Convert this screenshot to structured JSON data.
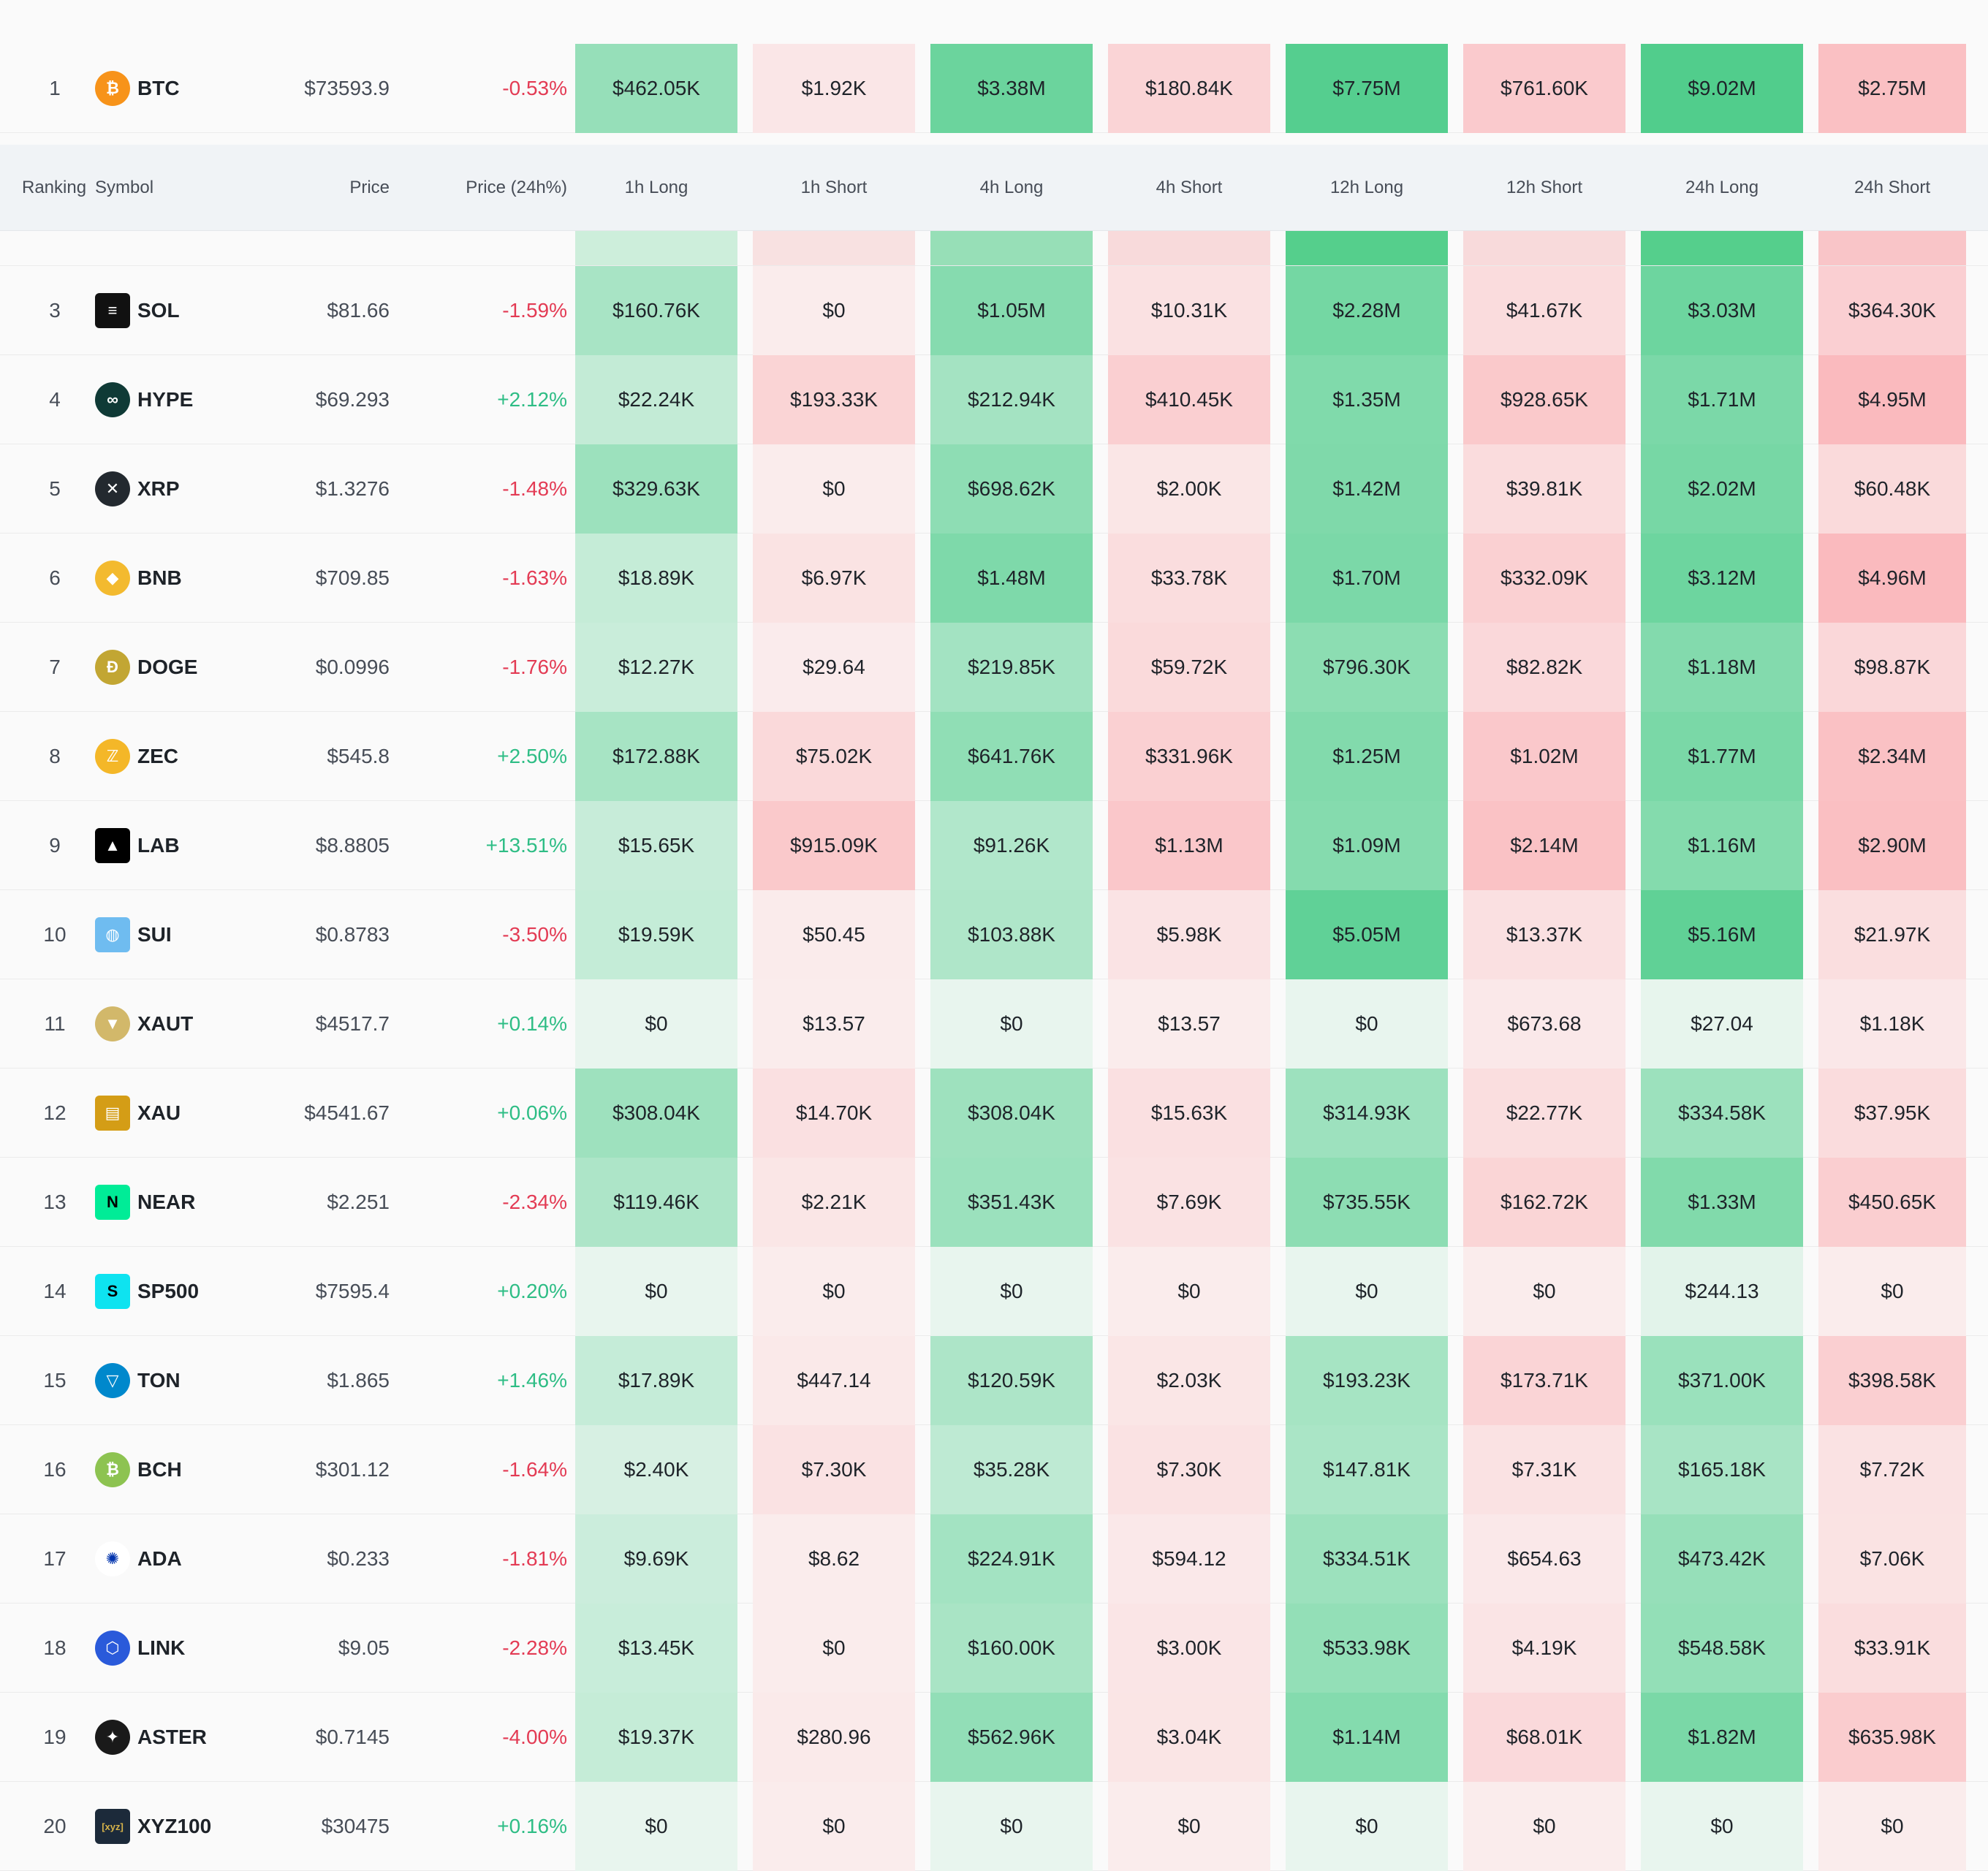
{
  "headers": {
    "ranking": "Ranking",
    "symbol": "Symbol",
    "price": "Price",
    "price_change": "Price (24h%)",
    "h1_long": "1h Long",
    "h1_short": "1h Short",
    "h4_long": "4h Long",
    "h4_short": "4h Short",
    "h12_long": "12h Long",
    "h12_short": "12h Short",
    "h24_long": "24h Long",
    "h24_short": "24h Short"
  },
  "rows": [
    {
      "rank": "1",
      "symbol": "BTC",
      "price": "$73593.9",
      "change": "-0.53%",
      "dir": "down",
      "values": [
        "$462.05K",
        "$1.92K",
        "$3.38M",
        "$180.84K",
        "$7.75M",
        "$761.60K",
        "$9.02M",
        "$2.75M"
      ]
    },
    {
      "rank": "3",
      "symbol": "SOL",
      "price": "$81.66",
      "change": "-1.59%",
      "dir": "down",
      "values": [
        "$160.76K",
        "$0",
        "$1.05M",
        "$10.31K",
        "$2.28M",
        "$41.67K",
        "$3.03M",
        "$364.30K"
      ]
    },
    {
      "rank": "4",
      "symbol": "HYPE",
      "price": "$69.293",
      "change": "+2.12%",
      "dir": "up",
      "values": [
        "$22.24K",
        "$193.33K",
        "$212.94K",
        "$410.45K",
        "$1.35M",
        "$928.65K",
        "$1.71M",
        "$4.95M"
      ]
    },
    {
      "rank": "5",
      "symbol": "XRP",
      "price": "$1.3276",
      "change": "-1.48%",
      "dir": "down",
      "values": [
        "$329.63K",
        "$0",
        "$698.62K",
        "$2.00K",
        "$1.42M",
        "$39.81K",
        "$2.02M",
        "$60.48K"
      ]
    },
    {
      "rank": "6",
      "symbol": "BNB",
      "price": "$709.85",
      "change": "-1.63%",
      "dir": "down",
      "values": [
        "$18.89K",
        "$6.97K",
        "$1.48M",
        "$33.78K",
        "$1.70M",
        "$332.09K",
        "$3.12M",
        "$4.96M"
      ]
    },
    {
      "rank": "7",
      "symbol": "DOGE",
      "price": "$0.0996",
      "change": "-1.76%",
      "dir": "down",
      "values": [
        "$12.27K",
        "$29.64",
        "$219.85K",
        "$59.72K",
        "$796.30K",
        "$82.82K",
        "$1.18M",
        "$98.87K"
      ]
    },
    {
      "rank": "8",
      "symbol": "ZEC",
      "price": "$545.8",
      "change": "+2.50%",
      "dir": "up",
      "values": [
        "$172.88K",
        "$75.02K",
        "$641.76K",
        "$331.96K",
        "$1.25M",
        "$1.02M",
        "$1.77M",
        "$2.34M"
      ]
    },
    {
      "rank": "9",
      "symbol": "LAB",
      "price": "$8.8805",
      "change": "+13.51%",
      "dir": "up",
      "values": [
        "$15.65K",
        "$915.09K",
        "$91.26K",
        "$1.13M",
        "$1.09M",
        "$2.14M",
        "$1.16M",
        "$2.90M"
      ]
    },
    {
      "rank": "10",
      "symbol": "SUI",
      "price": "$0.8783",
      "change": "-3.50%",
      "dir": "down",
      "values": [
        "$19.59K",
        "$50.45",
        "$103.88K",
        "$5.98K",
        "$5.05M",
        "$13.37K",
        "$5.16M",
        "$21.97K"
      ]
    },
    {
      "rank": "11",
      "symbol": "XAUT",
      "price": "$4517.7",
      "change": "+0.14%",
      "dir": "up",
      "values": [
        "$0",
        "$13.57",
        "$0",
        "$13.57",
        "$0",
        "$673.68",
        "$27.04",
        "$1.18K"
      ]
    },
    {
      "rank": "12",
      "symbol": "XAU",
      "price": "$4541.67",
      "change": "+0.06%",
      "dir": "up",
      "values": [
        "$308.04K",
        "$14.70K",
        "$308.04K",
        "$15.63K",
        "$314.93K",
        "$22.77K",
        "$334.58K",
        "$37.95K"
      ]
    },
    {
      "rank": "13",
      "symbol": "NEAR",
      "price": "$2.251",
      "change": "-2.34%",
      "dir": "down",
      "values": [
        "$119.46K",
        "$2.21K",
        "$351.43K",
        "$7.69K",
        "$735.55K",
        "$162.72K",
        "$1.33M",
        "$450.65K"
      ]
    },
    {
      "rank": "14",
      "symbol": "SP500",
      "price": "$7595.4",
      "change": "+0.20%",
      "dir": "up",
      "values": [
        "$0",
        "$0",
        "$0",
        "$0",
        "$0",
        "$0",
        "$244.13",
        "$0"
      ]
    },
    {
      "rank": "15",
      "symbol": "TON",
      "price": "$1.865",
      "change": "+1.46%",
      "dir": "up",
      "values": [
        "$17.89K",
        "$447.14",
        "$120.59K",
        "$2.03K",
        "$193.23K",
        "$173.71K",
        "$371.00K",
        "$398.58K"
      ]
    },
    {
      "rank": "16",
      "symbol": "BCH",
      "price": "$301.12",
      "change": "-1.64%",
      "dir": "down",
      "values": [
        "$2.40K",
        "$7.30K",
        "$35.28K",
        "$7.30K",
        "$147.81K",
        "$7.31K",
        "$165.18K",
        "$7.72K"
      ]
    },
    {
      "rank": "17",
      "symbol": "ADA",
      "price": "$0.233",
      "change": "-1.81%",
      "dir": "down",
      "values": [
        "$9.69K",
        "$8.62",
        "$224.91K",
        "$594.12",
        "$334.51K",
        "$654.63",
        "$473.42K",
        "$7.06K"
      ]
    },
    {
      "rank": "18",
      "symbol": "LINK",
      "price": "$9.05",
      "change": "-2.28%",
      "dir": "down",
      "values": [
        "$13.45K",
        "$0",
        "$160.00K",
        "$3.00K",
        "$533.98K",
        "$4.19K",
        "$548.58K",
        "$33.91K"
      ]
    },
    {
      "rank": "19",
      "symbol": "ASTER",
      "price": "$0.7145",
      "change": "-4.00%",
      "dir": "down",
      "values": [
        "$19.37K",
        "$280.96",
        "$562.96K",
        "$3.04K",
        "$1.14M",
        "$68.01K",
        "$1.82M",
        "$635.98K"
      ]
    },
    {
      "rank": "20",
      "symbol": "XYZ100",
      "price": "$30475",
      "change": "+0.16%",
      "dir": "up",
      "values": [
        "$0",
        "$0",
        "$0",
        "$0",
        "$0",
        "$0",
        "$0",
        "$0"
      ]
    }
  ],
  "logos": {
    "BTC": {
      "color": "#f7931a",
      "glyph": "₿"
    },
    "SOL": {
      "color": "#111111",
      "glyph": "≡"
    },
    "HYPE": {
      "color": "#0f3a36",
      "glyph": "∞"
    },
    "XRP": {
      "color": "#23292f",
      "glyph": "✕"
    },
    "BNB": {
      "color": "#f3ba2f",
      "glyph": "◆"
    },
    "DOGE": {
      "color": "#c2a633",
      "glyph": "Ð"
    },
    "ZEC": {
      "color": "#f4b728",
      "glyph": "ℤ"
    },
    "LAB": {
      "color": "#000000",
      "glyph": "▲"
    },
    "SUI": {
      "color": "#6fbcf0",
      "glyph": "◍"
    },
    "XAUT": {
      "color": "#d2b86a",
      "glyph": "▼"
    },
    "XAU": {
      "color": "#d49d16",
      "glyph": "▤"
    },
    "NEAR": {
      "color": "#00ec97",
      "glyph": "N"
    },
    "SP500": {
      "color": "#0ee3f0",
      "glyph": "S"
    },
    "TON": {
      "color": "#0088cc",
      "glyph": "▽"
    },
    "BCH": {
      "color": "#8dc351",
      "glyph": "₿"
    },
    "ADA": {
      "color": "#ffffff",
      "glyph": "✺"
    },
    "LINK": {
      "color": "#2a5ada",
      "glyph": "⬡"
    },
    "ASTER": {
      "color": "#1a1a1a",
      "glyph": "✦"
    },
    "XYZ100": {
      "color": "#1c2a3a",
      "glyph": "[xyz]"
    }
  },
  "colors": {
    "up": "#2ebd85",
    "down": "#e33b54"
  }
}
